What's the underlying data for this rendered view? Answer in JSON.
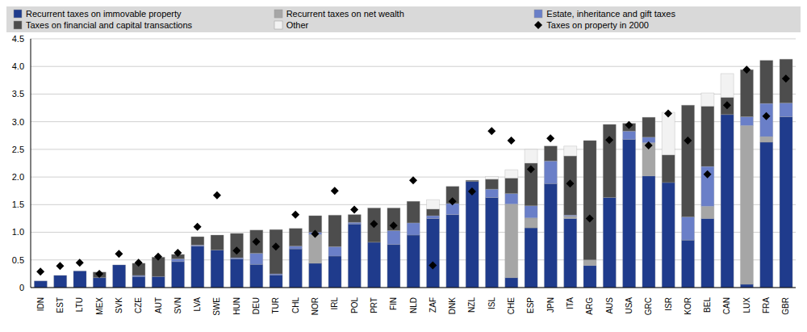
{
  "chart_data": {
    "type": "bar",
    "stacked": true,
    "grid": true,
    "legend": "top",
    "categories": [
      "IDN",
      "EST",
      "LTU",
      "MEX",
      "SVK",
      "CZE",
      "AUT",
      "SVN",
      "LVA",
      "SWE",
      "HUN",
      "DEU",
      "TUR",
      "CHL",
      "NOR",
      "IRL",
      "POL",
      "PRT",
      "FIN",
      "NLD",
      "ZAF",
      "DNK",
      "NZL",
      "ISL",
      "CHE",
      "ESP",
      "JPN",
      "ITA",
      "ARG",
      "AUS",
      "USA",
      "GRC",
      "ISR",
      "KOR",
      "BEL",
      "CAN",
      "LUX",
      "FRA",
      "GBR"
    ],
    "ylim": [
      0,
      4.5
    ],
    "yticks": [
      0,
      0.5,
      {
        "value": 1,
        "label": "1.0"
      },
      1.5,
      {
        "value": 2,
        "label": "2.0"
      },
      2.5,
      {
        "value": 3,
        "label": "3.0"
      },
      3.5,
      {
        "value": 4,
        "label": "4.0"
      },
      4.5
    ],
    "series": [
      {
        "name": "Recurrent taxes on immovable property",
        "type": "bar",
        "color": "#1f3b8c",
        "values": [
          0.12,
          0.22,
          0.3,
          0.18,
          0.41,
          0.2,
          0.2,
          0.47,
          0.75,
          0.68,
          0.52,
          0.42,
          0.23,
          0.7,
          0.44,
          0.57,
          1.15,
          0.82,
          0.78,
          0.95,
          1.25,
          1.32,
          1.92,
          1.63,
          0.18,
          1.08,
          1.88,
          1.25,
          0.4,
          1.63,
          2.68,
          2.02,
          1.9,
          0.86,
          1.25,
          3.13,
          0.06,
          2.63,
          3.09
        ]
      },
      {
        "name": "Recurrent taxes on net wealth",
        "type": "bar",
        "color": "#a6a6a6",
        "values": [
          0,
          0,
          0,
          0,
          0,
          0,
          0,
          0,
          0,
          0,
          0,
          0,
          0,
          0,
          0.52,
          0,
          0,
          0,
          0,
          0,
          0,
          0,
          0,
          0,
          1.33,
          0.18,
          0,
          0.04,
          0.1,
          0,
          0,
          0.6,
          0,
          0,
          0.22,
          0,
          2.87,
          0.1,
          0
        ]
      },
      {
        "name": "Estate, inheritance and gift taxes",
        "type": "bar",
        "color": "#6a7fc8",
        "values": [
          0,
          0,
          0,
          0,
          0,
          0.02,
          0,
          0.05,
          0.02,
          0,
          0.02,
          0.2,
          0.02,
          0.05,
          0.04,
          0.17,
          0.03,
          0,
          0.25,
          0.22,
          0.05,
          0.2,
          0,
          0.15,
          0.19,
          0.22,
          0.41,
          0.02,
          0,
          0,
          0.15,
          0.1,
          0,
          0.42,
          0.72,
          0,
          0.16,
          0.6,
          0.25
        ]
      },
      {
        "name": "Taxes on financial and capital transactions",
        "type": "bar",
        "color": "#4d4d4d",
        "values": [
          0,
          0,
          0,
          0.1,
          0,
          0.22,
          0.35,
          0.08,
          0.15,
          0.27,
          0.44,
          0.42,
          0.8,
          0.32,
          0.3,
          0.57,
          0.14,
          0.62,
          0.41,
          0.39,
          0.12,
          0.31,
          0.02,
          0.18,
          0.28,
          0.77,
          0.27,
          1.07,
          2.16,
          1.32,
          0.14,
          0.36,
          0.5,
          2.02,
          1.09,
          0.31,
          0.85,
          0.78,
          0.79
        ]
      },
      {
        "name": "Other",
        "type": "bar",
        "color": "#f2f2f2",
        "values": [
          0,
          0,
          0,
          0,
          0,
          0,
          0,
          0,
          0,
          0,
          0,
          0,
          0,
          0,
          0,
          0,
          0,
          0,
          0,
          0,
          0.17,
          0,
          0,
          0.05,
          0.15,
          0.25,
          0,
          0.18,
          0,
          0,
          0,
          0,
          0.77,
          0,
          0.24,
          0.43,
          0,
          0,
          0
        ]
      },
      {
        "name": "Taxes on property in 2000",
        "type": "scatter",
        "marker": "diamond",
        "color": "#000000",
        "values": [
          0.29,
          0.39,
          0.45,
          0.25,
          0.61,
          0.45,
          0.56,
          0.63,
          1.1,
          1.67,
          0.67,
          0.83,
          0.74,
          1.32,
          0.97,
          1.75,
          1.41,
          1.15,
          1.12,
          1.94,
          0.4,
          1.56,
          1.74,
          2.83,
          2.66,
          2.14,
          2.7,
          1.88,
          1.25,
          2.67,
          2.94,
          2.57,
          3.15,
          2.66,
          2.05,
          3.3,
          3.94,
          3.1,
          3.78
        ]
      }
    ]
  }
}
